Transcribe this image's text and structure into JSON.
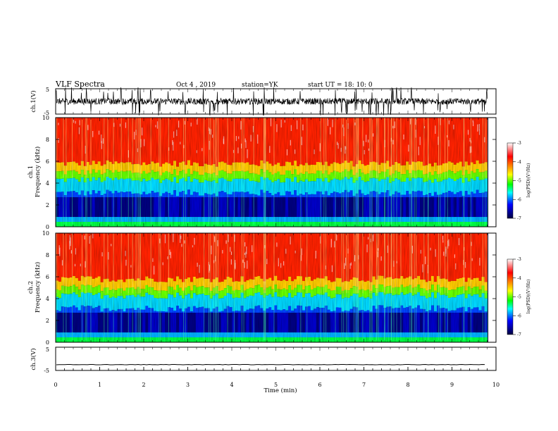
{
  "header": {
    "title": "VLF Spectra",
    "date": "Oct 4 , 2019",
    "station": "station=YK",
    "start": "start UT = 18: 10: 0"
  },
  "colorbar": {
    "ticks": [
      "-3",
      "-4",
      "-5",
      "-6",
      "-7"
    ],
    "label": "log(PSD)(V²/Hz)",
    "colors": [
      "#ffffff",
      "#ff0000",
      "#ffff00",
      "#00ff00",
      "#00ffff",
      "#0000ff",
      "#000040"
    ]
  },
  "chart_data": [
    {
      "type": "line",
      "ylabel": "ch.1(V)",
      "ylim": [
        -5,
        5
      ],
      "yticks": [
        "5",
        "-5"
      ],
      "xlim": [
        0,
        10
      ],
      "description_values": {
        "baseline": 0,
        "typical_spread": 2.5
      }
    },
    {
      "type": "heatmap",
      "ylabel_top": "ch.1",
      "ylabel": "Frequency (kHz)",
      "ylim": [
        0,
        10
      ],
      "yticks": [
        "0",
        "2",
        "4",
        "6",
        "8",
        "10"
      ],
      "xlim": [
        0,
        10
      ],
      "value_range": [
        -7,
        -3
      ],
      "data_end_min": 9.8
    },
    {
      "type": "heatmap",
      "ylabel_top": "ch.2",
      "ylabel": "Frequency (kHz)",
      "ylim": [
        0,
        10
      ],
      "yticks": [
        "0",
        "2",
        "4",
        "6",
        "8",
        "10"
      ],
      "xlim": [
        0,
        10
      ],
      "value_range": [
        -7,
        -3
      ],
      "data_end_min": 9.8
    },
    {
      "type": "line",
      "ylabel": "ch.3(V)",
      "ylim": [
        -5,
        5
      ],
      "yticks": [
        "5",
        "-5"
      ],
      "xlim": [
        0,
        10
      ],
      "xlabel": "Time (min)",
      "xticks": [
        "0",
        "1",
        "2",
        "3",
        "4",
        "5",
        "6",
        "7",
        "8",
        "9",
        "10"
      ],
      "description_values": {
        "baseline": -2.5
      }
    }
  ]
}
